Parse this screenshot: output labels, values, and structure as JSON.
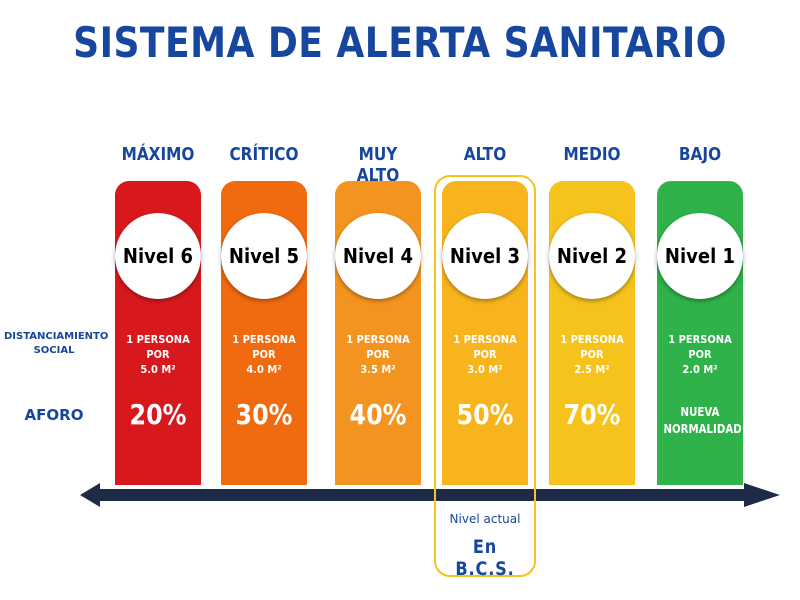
{
  "title": "SISTEMA DE ALERTA SANITARIO",
  "row_labels": {
    "distanciamiento_line1": "DISTANCIAMIENTO",
    "distanciamiento_line2": "SOCIAL",
    "aforo": "AFORO"
  },
  "levels": [
    {
      "name": "MÁXIMO",
      "nivel": "Nivel 6",
      "dist_line1": "1 PERSONA POR",
      "dist_line2": "5.0 M²",
      "aforo_line1": "20%",
      "aforo_line2": "",
      "color": "#d7191e"
    },
    {
      "name": "CRÍTICO",
      "nivel": "Nivel 5",
      "dist_line1": "1 PERSONA POR",
      "dist_line2": "4.0 M²",
      "aforo_line1": "30%",
      "aforo_line2": "",
      "color": "#f06a0f"
    },
    {
      "name": "MUY ALTO",
      "nivel": "Nivel 4",
      "dist_line1": "1 PERSONA POR",
      "dist_line2": "3.5 M²",
      "aforo_line1": "40%",
      "aforo_line2": "",
      "color": "#f39420"
    },
    {
      "name": "ALTO",
      "nivel": "Nivel 3",
      "dist_line1": "1 PERSONA POR",
      "dist_line2": "3.0 M²",
      "aforo_line1": "50%",
      "aforo_line2": "",
      "color": "#f8b41c"
    },
    {
      "name": "MEDIO",
      "nivel": "Nivel 2",
      "dist_line1": "1 PERSONA POR",
      "dist_line2": "2.5 M²",
      "aforo_line1": "70%",
      "aforo_line2": "",
      "color": "#f6c21c"
    },
    {
      "name": "BAJO",
      "nivel": "Nivel 1",
      "dist_line1": "1 PERSONA POR",
      "dist_line2": "2.0 M²",
      "aforo_line1": "NUEVA",
      "aforo_line2": "NORMALIDAD",
      "color": "#2fb24a"
    }
  ],
  "current": {
    "label": "Nivel actual",
    "place": "En B.C.S.",
    "highlight_color": "#f3c320"
  },
  "colors": {
    "title": "#17469e",
    "arrow": "#1e2b46"
  }
}
